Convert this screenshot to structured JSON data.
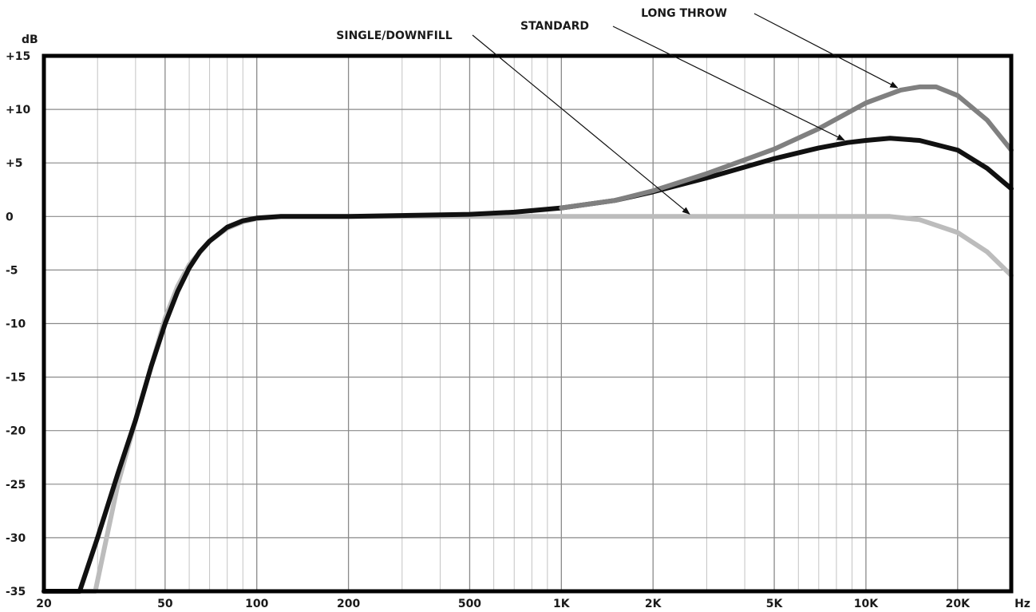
{
  "chart_data": {
    "type": "line",
    "title": "",
    "xlabel": "Hz",
    "ylabel": "dB",
    "x_scale": "log",
    "xlim": [
      20,
      30000
    ],
    "ylim": [
      -35,
      15
    ],
    "grid": true,
    "x_ticks": [
      {
        "value": 20,
        "label": "20"
      },
      {
        "value": 50,
        "label": "50"
      },
      {
        "value": 100,
        "label": "100"
      },
      {
        "value": 200,
        "label": "200"
      },
      {
        "value": 500,
        "label": "500"
      },
      {
        "value": 1000,
        "label": "1K"
      },
      {
        "value": 2000,
        "label": "2K"
      },
      {
        "value": 5000,
        "label": "5K"
      },
      {
        "value": 10000,
        "label": "10K"
      },
      {
        "value": 20000,
        "label": "20K"
      }
    ],
    "y_ticks": [
      {
        "value": 15,
        "label": "+15"
      },
      {
        "value": 10,
        "label": "+10"
      },
      {
        "value": 5,
        "label": "+5"
      },
      {
        "value": 0,
        "label": "0"
      },
      {
        "value": -5,
        "label": "-5"
      },
      {
        "value": -10,
        "label": "-10"
      },
      {
        "value": -15,
        "label": "-15"
      },
      {
        "value": -20,
        "label": "-20"
      },
      {
        "value": -25,
        "label": "-25"
      },
      {
        "value": -30,
        "label": "-30"
      },
      {
        "value": -35,
        "label": "-35"
      }
    ],
    "series": [
      {
        "name": "SINGLE/DOWNFILL",
        "color": "#bcbcbc",
        "points": [
          [
            20,
            -35
          ],
          [
            29.5,
            -35
          ],
          [
            35,
            -25
          ],
          [
            40,
            -19
          ],
          [
            45,
            -14
          ],
          [
            50,
            -9.5
          ],
          [
            55,
            -6.5
          ],
          [
            60,
            -4.5
          ],
          [
            70,
            -2.3
          ],
          [
            80,
            -1.1
          ],
          [
            90,
            -0.5
          ],
          [
            100,
            -0.2
          ],
          [
            120,
            0
          ],
          [
            500,
            0
          ],
          [
            1000,
            0
          ],
          [
            2700,
            0
          ],
          [
            5000,
            0
          ],
          [
            10000,
            0
          ],
          [
            12000,
            0
          ],
          [
            15000,
            -0.3
          ],
          [
            20000,
            -1.5
          ],
          [
            25000,
            -3.3
          ],
          [
            30000,
            -5.5
          ]
        ]
      },
      {
        "name": "STANDARD",
        "color": "#111111",
        "points": [
          [
            20,
            -35
          ],
          [
            26.2,
            -35
          ],
          [
            30,
            -30
          ],
          [
            35,
            -24
          ],
          [
            40,
            -19
          ],
          [
            45,
            -14
          ],
          [
            50,
            -10
          ],
          [
            55,
            -7
          ],
          [
            60,
            -4.8
          ],
          [
            65,
            -3.3
          ],
          [
            70,
            -2.3
          ],
          [
            80,
            -1
          ],
          [
            90,
            -0.4
          ],
          [
            100,
            -0.15
          ],
          [
            120,
            0
          ],
          [
            200,
            0
          ],
          [
            500,
            0.2
          ],
          [
            700,
            0.4
          ],
          [
            1000,
            0.8
          ],
          [
            1500,
            1.5
          ],
          [
            2000,
            2.3
          ],
          [
            3000,
            3.6
          ],
          [
            5000,
            5.4
          ],
          [
            7000,
            6.4
          ],
          [
            8700,
            6.9
          ],
          [
            10000,
            7.1
          ],
          [
            12000,
            7.3
          ],
          [
            15000,
            7.1
          ],
          [
            20000,
            6.2
          ],
          [
            25000,
            4.5
          ],
          [
            30000,
            2.6
          ]
        ]
      },
      {
        "name": "LONG THROW",
        "color": "#808080",
        "points": [
          [
            1000,
            0.8
          ],
          [
            1500,
            1.5
          ],
          [
            2000,
            2.4
          ],
          [
            3000,
            4
          ],
          [
            5000,
            6.3
          ],
          [
            7000,
            8.2
          ],
          [
            10000,
            10.6
          ],
          [
            13000,
            11.8
          ],
          [
            15000,
            12.1
          ],
          [
            17000,
            12.1
          ],
          [
            20000,
            11.3
          ],
          [
            25000,
            9
          ],
          [
            30000,
            6.2
          ]
        ]
      }
    ],
    "annotations": [
      {
        "text": "SINGLE/DOWNFILL",
        "series": "SINGLE/DOWNFILL",
        "arrow_to": [
          2700,
          0
        ]
      },
      {
        "text": "STANDARD",
        "series": "STANDARD",
        "arrow_to": [
          8700,
          6.9
        ]
      },
      {
        "text": "LONG THROW",
        "series": "LONG THROW",
        "arrow_to": [
          13000,
          11.8
        ]
      }
    ]
  }
}
